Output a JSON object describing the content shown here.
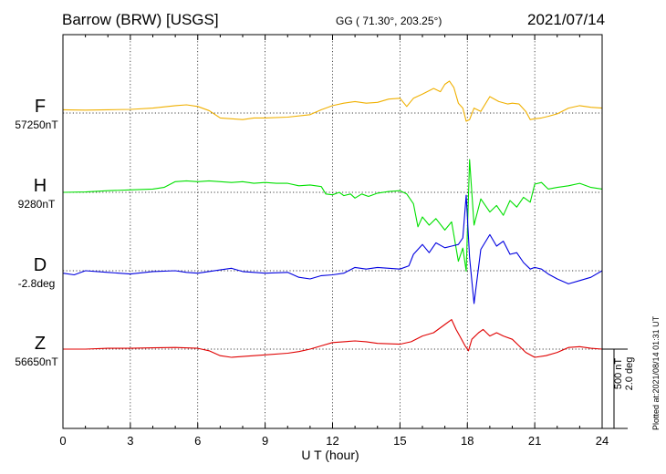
{
  "header": {
    "station": "Barrow (BRW)  [USGS]",
    "coordinates": "GG ( 71.30°, 203.25°)",
    "date": "2021/07/14"
  },
  "footer": {
    "plotted": "Plotted at:2021/08/14 01:31  UT",
    "scale_nt": "500 nT",
    "scale_deg": "2.0 deg"
  },
  "chart_data": {
    "type": "line",
    "title": "Barrow (BRW)  [USGS]",
    "xlabel": "U T (hour)",
    "xlim": [
      0,
      24
    ],
    "xticks": [
      0,
      3,
      6,
      9,
      12,
      15,
      18,
      21,
      24
    ],
    "grid": true,
    "scale": {
      "nT": 500,
      "deg": 2.0
    },
    "series": [
      {
        "name": "F",
        "baseline_label": "57250nT",
        "color": "#f0b000",
        "unit": "nT",
        "baseline": 57250,
        "points": [
          [
            0,
            20
          ],
          [
            1,
            18
          ],
          [
            2,
            20
          ],
          [
            3,
            22
          ],
          [
            4,
            30
          ],
          [
            5,
            45
          ],
          [
            5.5,
            50
          ],
          [
            6,
            40
          ],
          [
            6.5,
            15
          ],
          [
            7,
            -30
          ],
          [
            7.5,
            -35
          ],
          [
            8,
            -40
          ],
          [
            8.5,
            -30
          ],
          [
            9,
            -30
          ],
          [
            10,
            -25
          ],
          [
            11,
            -10
          ],
          [
            11.5,
            20
          ],
          [
            12,
            45
          ],
          [
            12.5,
            60
          ],
          [
            13,
            70
          ],
          [
            13.5,
            60
          ],
          [
            14,
            65
          ],
          [
            14.5,
            85
          ],
          [
            15,
            90
          ],
          [
            15.3,
            40
          ],
          [
            15.6,
            90
          ],
          [
            16,
            115
          ],
          [
            16.5,
            150
          ],
          [
            16.8,
            130
          ],
          [
            17,
            175
          ],
          [
            17.2,
            195
          ],
          [
            17.4,
            155
          ],
          [
            17.6,
            60
          ],
          [
            17.8,
            30
          ],
          [
            17.95,
            -50
          ],
          [
            18.1,
            -40
          ],
          [
            18.3,
            30
          ],
          [
            18.6,
            10
          ],
          [
            19,
            100
          ],
          [
            19.4,
            70
          ],
          [
            19.8,
            55
          ],
          [
            20,
            60
          ],
          [
            20.3,
            55
          ],
          [
            20.6,
            10
          ],
          [
            20.8,
            -40
          ],
          [
            21,
            -35
          ],
          [
            21.3,
            -30
          ],
          [
            21.6,
            -20
          ],
          [
            22,
            -5
          ],
          [
            22.5,
            30
          ],
          [
            23,
            45
          ],
          [
            23.5,
            35
          ],
          [
            24,
            30
          ]
        ]
      },
      {
        "name": "H",
        "baseline_label": "9280nT",
        "color": "#00e000",
        "unit": "nT",
        "baseline": 9280,
        "points": [
          [
            0,
            0
          ],
          [
            1,
            2
          ],
          [
            2,
            10
          ],
          [
            3,
            15
          ],
          [
            4,
            20
          ],
          [
            4.5,
            30
          ],
          [
            5,
            65
          ],
          [
            5.5,
            70
          ],
          [
            6,
            65
          ],
          [
            6.5,
            70
          ],
          [
            7,
            65
          ],
          [
            7.5,
            60
          ],
          [
            8,
            65
          ],
          [
            8.5,
            55
          ],
          [
            9,
            60
          ],
          [
            9.5,
            55
          ],
          [
            10,
            55
          ],
          [
            10.5,
            40
          ],
          [
            11,
            45
          ],
          [
            11.5,
            35
          ],
          [
            11.7,
            -10
          ],
          [
            12,
            -15
          ],
          [
            12.3,
            0
          ],
          [
            12.5,
            -20
          ],
          [
            12.8,
            -10
          ],
          [
            13,
            -35
          ],
          [
            13.3,
            -10
          ],
          [
            13.6,
            -25
          ],
          [
            14,
            -5
          ],
          [
            14.5,
            5
          ],
          [
            15,
            10
          ],
          [
            15.3,
            -10
          ],
          [
            15.6,
            -70
          ],
          [
            15.8,
            -210
          ],
          [
            16,
            -150
          ],
          [
            16.3,
            -200
          ],
          [
            16.6,
            -160
          ],
          [
            17,
            -230
          ],
          [
            17.3,
            -180
          ],
          [
            17.6,
            -420
          ],
          [
            17.8,
            -340
          ],
          [
            17.95,
            -480
          ],
          [
            18.1,
            200
          ],
          [
            18.3,
            -200
          ],
          [
            18.6,
            -40
          ],
          [
            19,
            -120
          ],
          [
            19.3,
            -80
          ],
          [
            19.6,
            -140
          ],
          [
            19.9,
            -50
          ],
          [
            20.2,
            -90
          ],
          [
            20.5,
            -30
          ],
          [
            20.8,
            -60
          ],
          [
            21,
            50
          ],
          [
            21.3,
            60
          ],
          [
            21.6,
            20
          ],
          [
            22,
            30
          ],
          [
            22.5,
            40
          ],
          [
            23,
            55
          ],
          [
            23.5,
            30
          ],
          [
            24,
            20
          ]
        ]
      },
      {
        "name": "D",
        "baseline_label": "-2.8deg",
        "color": "#0000e0",
        "unit": "deg",
        "baseline": -2.8,
        "points": [
          [
            0,
            -15
          ],
          [
            0.5,
            -25
          ],
          [
            1,
            0
          ],
          [
            2,
            -10
          ],
          [
            3,
            -20
          ],
          [
            4,
            -5
          ],
          [
            5,
            0
          ],
          [
            5.5,
            -10
          ],
          [
            6,
            -15
          ],
          [
            7,
            5
          ],
          [
            7.5,
            15
          ],
          [
            8,
            -5
          ],
          [
            9,
            -15
          ],
          [
            10,
            -10
          ],
          [
            10.5,
            -40
          ],
          [
            11,
            -50
          ],
          [
            11.5,
            -30
          ],
          [
            12,
            -25
          ],
          [
            12.5,
            -15
          ],
          [
            13,
            20
          ],
          [
            13.5,
            10
          ],
          [
            14,
            20
          ],
          [
            14.5,
            15
          ],
          [
            15,
            10
          ],
          [
            15.4,
            30
          ],
          [
            15.6,
            100
          ],
          [
            16,
            160
          ],
          [
            16.3,
            110
          ],
          [
            16.6,
            170
          ],
          [
            17,
            140
          ],
          [
            17.3,
            150
          ],
          [
            17.6,
            160
          ],
          [
            17.8,
            200
          ],
          [
            17.95,
            460
          ],
          [
            18.1,
            80
          ],
          [
            18.3,
            -200
          ],
          [
            18.6,
            130
          ],
          [
            19,
            220
          ],
          [
            19.3,
            150
          ],
          [
            19.6,
            180
          ],
          [
            19.9,
            100
          ],
          [
            20.2,
            110
          ],
          [
            20.5,
            50
          ],
          [
            20.8,
            10
          ],
          [
            21,
            20
          ],
          [
            21.3,
            10
          ],
          [
            21.6,
            -20
          ],
          [
            22,
            -50
          ],
          [
            22.5,
            -80
          ],
          [
            23,
            -60
          ],
          [
            23.5,
            -40
          ],
          [
            24,
            0
          ]
        ]
      },
      {
        "name": "Z",
        "baseline_label": "56650nT",
        "color": "#e00000",
        "unit": "nT",
        "baseline": 56650,
        "points": [
          [
            0,
            0
          ],
          [
            1,
            0
          ],
          [
            2,
            5
          ],
          [
            3,
            5
          ],
          [
            4,
            8
          ],
          [
            5,
            10
          ],
          [
            6,
            5
          ],
          [
            6.5,
            -10
          ],
          [
            7,
            -40
          ],
          [
            7.5,
            -50
          ],
          [
            8,
            -45
          ],
          [
            9,
            -35
          ],
          [
            10,
            -25
          ],
          [
            10.5,
            -15
          ],
          [
            11,
            0
          ],
          [
            11.5,
            20
          ],
          [
            12,
            40
          ],
          [
            12.5,
            45
          ],
          [
            13,
            50
          ],
          [
            13.5,
            45
          ],
          [
            14,
            35
          ],
          [
            15,
            30
          ],
          [
            15.5,
            45
          ],
          [
            16,
            80
          ],
          [
            16.5,
            100
          ],
          [
            17,
            150
          ],
          [
            17.3,
            180
          ],
          [
            17.5,
            120
          ],
          [
            17.7,
            70
          ],
          [
            17.9,
            20
          ],
          [
            18.05,
            -10
          ],
          [
            18.2,
            60
          ],
          [
            18.5,
            100
          ],
          [
            18.7,
            120
          ],
          [
            19,
            80
          ],
          [
            19.3,
            100
          ],
          [
            19.6,
            80
          ],
          [
            20,
            60
          ],
          [
            20.3,
            20
          ],
          [
            20.6,
            -20
          ],
          [
            21,
            -50
          ],
          [
            21.5,
            -40
          ],
          [
            22,
            -20
          ],
          [
            22.5,
            10
          ],
          [
            23,
            15
          ],
          [
            23.5,
            5
          ],
          [
            24,
            0
          ]
        ]
      }
    ]
  }
}
